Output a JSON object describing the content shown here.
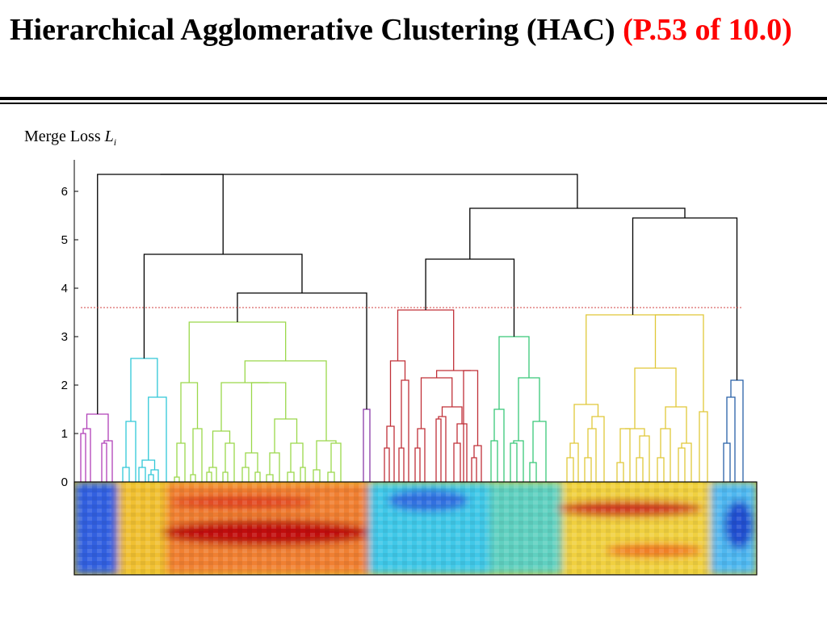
{
  "title": {
    "main": "Hierarchical Agglomerative Clustering (HAC) ",
    "highlight": "(P.53 of 10.0)"
  },
  "y_label": {
    "text": "Merge Loss ",
    "symbol": "L",
    "subscript": "i"
  },
  "figure": {
    "y_ticks": [
      "0",
      "1",
      "2",
      "3",
      "4",
      "5",
      "6"
    ],
    "threshold": 3.6,
    "colors": {
      "magenta": "#b040b8",
      "cyan": "#30c8d8",
      "lightgreen": "#9ad84a",
      "purple": "#8a3aa8",
      "red": "#c03038",
      "green": "#38c878",
      "yellow": "#e0c838",
      "blue": "#2860a8",
      "root": "#000000",
      "threshold": "#d04040"
    }
  }
}
